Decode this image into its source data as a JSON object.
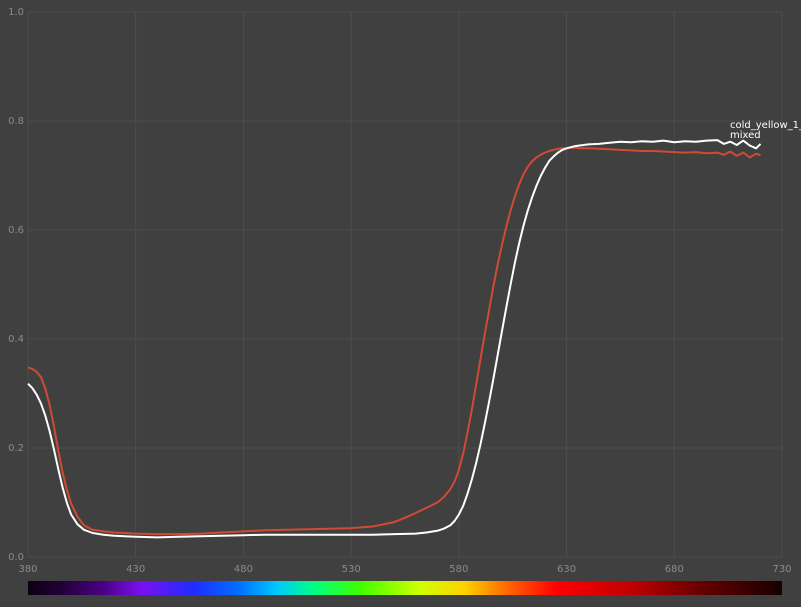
{
  "chart_data": {
    "type": "line",
    "xlim": [
      380,
      730
    ],
    "ylim": [
      0.0,
      1.0
    ],
    "x_ticks": [
      "380",
      "430",
      "480",
      "530",
      "580",
      "630",
      "680",
      "730"
    ],
    "y_ticks": [
      "0.0",
      "0.2",
      "0.4",
      "0.6",
      "0.8",
      "1.0"
    ],
    "grid": true,
    "spectrum_bar": true,
    "series": [
      {
        "name": "cold_yellow_1_",
        "color": "#ffffff",
        "x": [
          380,
          382,
          384,
          386,
          388,
          390,
          392,
          394,
          396,
          398,
          400,
          403,
          406,
          410,
          415,
          420,
          425,
          430,
          440,
          450,
          460,
          470,
          480,
          490,
          500,
          510,
          520,
          530,
          540,
          550,
          560,
          565,
          570,
          573,
          576,
          578,
          580,
          582,
          584,
          586,
          588,
          590,
          592,
          594,
          596,
          598,
          600,
          602,
          604,
          606,
          608,
          610,
          612,
          614,
          616,
          618,
          620,
          622,
          624,
          626,
          628,
          630,
          632,
          634,
          636,
          638,
          640,
          645,
          650,
          655,
          660,
          665,
          670,
          675,
          680,
          685,
          690,
          695,
          700,
          703,
          706,
          709,
          712,
          715,
          718,
          720
        ],
        "y": [
          0.318,
          0.31,
          0.298,
          0.282,
          0.26,
          0.232,
          0.198,
          0.162,
          0.128,
          0.1,
          0.078,
          0.06,
          0.05,
          0.044,
          0.041,
          0.039,
          0.038,
          0.037,
          0.036,
          0.037,
          0.038,
          0.039,
          0.04,
          0.041,
          0.041,
          0.041,
          0.041,
          0.041,
          0.041,
          0.042,
          0.043,
          0.045,
          0.048,
          0.052,
          0.058,
          0.066,
          0.078,
          0.094,
          0.116,
          0.142,
          0.172,
          0.206,
          0.244,
          0.284,
          0.326,
          0.37,
          0.414,
          0.458,
          0.5,
          0.54,
          0.576,
          0.608,
          0.636,
          0.66,
          0.681,
          0.699,
          0.714,
          0.727,
          0.735,
          0.742,
          0.747,
          0.75,
          0.752,
          0.754,
          0.755,
          0.756,
          0.757,
          0.758,
          0.76,
          0.762,
          0.761,
          0.763,
          0.762,
          0.764,
          0.761,
          0.763,
          0.762,
          0.764,
          0.765,
          0.758,
          0.762,
          0.756,
          0.764,
          0.755,
          0.75,
          0.758
        ]
      },
      {
        "name": "mixed",
        "color": "#d04a36",
        "x": [
          380,
          382,
          384,
          386,
          388,
          390,
          392,
          394,
          396,
          398,
          400,
          403,
          406,
          410,
          415,
          420,
          425,
          430,
          440,
          450,
          460,
          470,
          480,
          490,
          500,
          510,
          520,
          530,
          540,
          550,
          555,
          560,
          565,
          570,
          573,
          576,
          578,
          580,
          582,
          584,
          586,
          588,
          590,
          592,
          594,
          596,
          598,
          600,
          602,
          604,
          606,
          608,
          610,
          612,
          614,
          616,
          618,
          620,
          622,
          624,
          626,
          628,
          630,
          632,
          634,
          636,
          638,
          640,
          645,
          650,
          655,
          660,
          665,
          670,
          675,
          680,
          685,
          690,
          695,
          700,
          703,
          706,
          709,
          712,
          715,
          718,
          720
        ],
        "y": [
          0.348,
          0.345,
          0.34,
          0.33,
          0.31,
          0.28,
          0.24,
          0.196,
          0.156,
          0.124,
          0.098,
          0.074,
          0.058,
          0.05,
          0.047,
          0.045,
          0.044,
          0.043,
          0.042,
          0.042,
          0.043,
          0.045,
          0.047,
          0.049,
          0.05,
          0.051,
          0.052,
          0.053,
          0.056,
          0.064,
          0.072,
          0.081,
          0.09,
          0.1,
          0.11,
          0.124,
          0.138,
          0.16,
          0.19,
          0.228,
          0.27,
          0.316,
          0.362,
          0.408,
          0.452,
          0.496,
          0.536,
          0.572,
          0.606,
          0.636,
          0.662,
          0.684,
          0.702,
          0.716,
          0.726,
          0.733,
          0.738,
          0.742,
          0.745,
          0.747,
          0.749,
          0.75,
          0.75,
          0.751,
          0.751,
          0.75,
          0.75,
          0.75,
          0.749,
          0.748,
          0.747,
          0.746,
          0.745,
          0.745,
          0.744,
          0.743,
          0.742,
          0.743,
          0.741,
          0.742,
          0.738,
          0.744,
          0.736,
          0.742,
          0.733,
          0.74,
          0.737
        ]
      }
    ]
  }
}
